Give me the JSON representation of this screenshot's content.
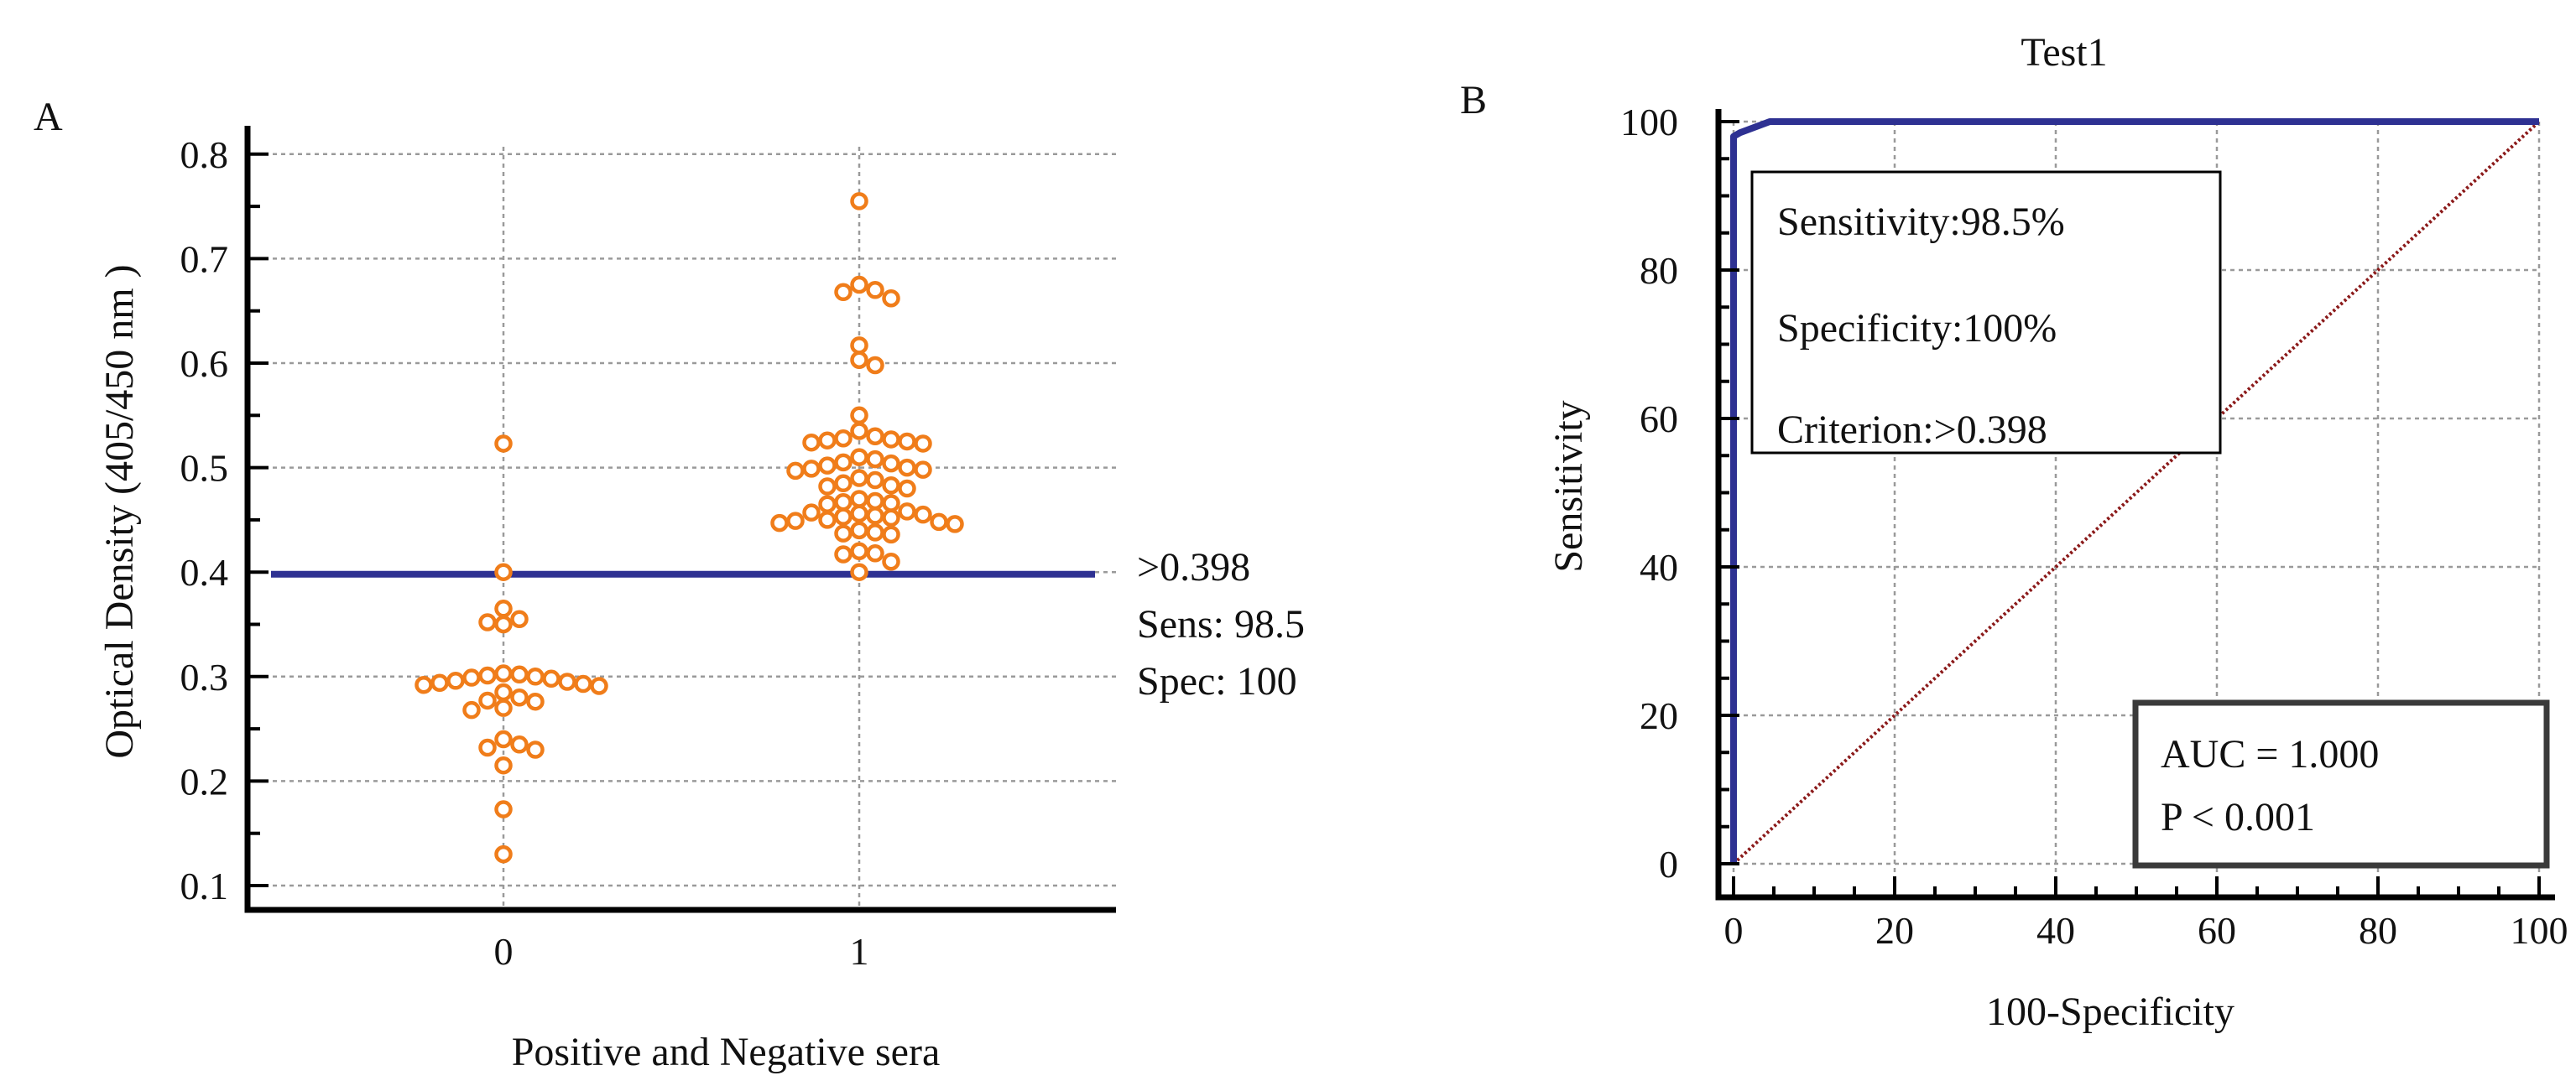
{
  "chart_data": [
    {
      "type": "scatter",
      "panel_label": "A",
      "title": "",
      "xlabel": "Positive and Negative sera",
      "ylabel": "Optical Density (405/450 nm )",
      "categories": [
        "0",
        "1"
      ],
      "ylim": [
        0.1,
        0.8
      ],
      "y_ticks": [
        "0.1",
        "0.2",
        "0.3",
        "0.4",
        "0.5",
        "0.6",
        "0.7",
        "0.8"
      ],
      "grid": true,
      "cutoff_line": {
        "value": 0.398,
        "color": "#2e3192"
      },
      "cutoff_annotation": [
        ">0.398",
        "Sens: 98.5",
        "Spec: 100"
      ],
      "marker_color": "#f07d1a",
      "series": [
        {
          "name": "0",
          "values": [
            0.523,
            0.4,
            0.365,
            0.355,
            0.352,
            0.35,
            0.303,
            0.302,
            0.301,
            0.3,
            0.299,
            0.298,
            0.296,
            0.295,
            0.294,
            0.293,
            0.292,
            0.291,
            0.285,
            0.28,
            0.277,
            0.276,
            0.27,
            0.268,
            0.24,
            0.235,
            0.232,
            0.23,
            0.215,
            0.173,
            0.13
          ]
        },
        {
          "name": "1",
          "values": [
            0.755,
            0.675,
            0.67,
            0.668,
            0.662,
            0.617,
            0.603,
            0.598,
            0.55,
            0.535,
            0.53,
            0.528,
            0.527,
            0.526,
            0.525,
            0.524,
            0.523,
            0.51,
            0.508,
            0.505,
            0.504,
            0.502,
            0.5,
            0.499,
            0.498,
            0.497,
            0.49,
            0.488,
            0.485,
            0.483,
            0.482,
            0.48,
            0.47,
            0.468,
            0.467,
            0.466,
            0.465,
            0.458,
            0.457,
            0.456,
            0.455,
            0.454,
            0.453,
            0.452,
            0.45,
            0.449,
            0.448,
            0.447,
            0.446,
            0.44,
            0.438,
            0.437,
            0.436,
            0.42,
            0.418,
            0.417,
            0.41,
            0.4
          ]
        }
      ]
    },
    {
      "type": "line",
      "panel_label": "B",
      "title": "Test1",
      "xlabel": "100-Specificity",
      "ylabel": "Sensitivity",
      "xlim": [
        0,
        100
      ],
      "ylim": [
        0,
        100
      ],
      "x_ticks": [
        "0",
        "20",
        "40",
        "60",
        "80",
        "100"
      ],
      "y_ticks": [
        "0",
        "20",
        "40",
        "60",
        "80",
        "100"
      ],
      "grid": true,
      "series": [
        {
          "name": "ROC",
          "color": "#2e3192",
          "x": [
            0,
            0,
            0.8,
            4.5,
            100
          ],
          "y": [
            0,
            98,
            98.5,
            100,
            100
          ]
        },
        {
          "name": "Reference",
          "color": "#8b1a1a",
          "x": [
            0,
            100
          ],
          "y": [
            0,
            100
          ]
        }
      ],
      "stats_box": [
        "Sensitivity:98.5%",
        "Specificity:100%",
        "Criterion:>0.398"
      ],
      "auc_box": [
        "AUC = 1.000",
        "P < 0.001"
      ]
    }
  ]
}
